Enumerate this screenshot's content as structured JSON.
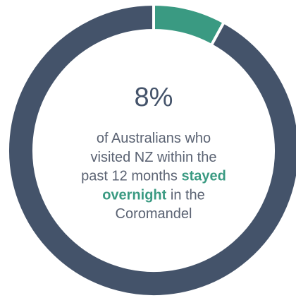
{
  "chart_data": {
    "type": "donut",
    "categories": [
      null,
      null
    ],
    "values": [
      8,
      92
    ],
    "value_labels": [
      "8%",
      null
    ],
    "colors": [
      "#3a9a82",
      "#44536a"
    ],
    "description": [
      [
        {
          "text": "of Australians who",
          "highlight": false
        }
      ],
      [
        {
          "text": "visited NZ within the",
          "highlight": false
        }
      ],
      [
        {
          "text": "past 12 months ",
          "highlight": false
        },
        {
          "text": "stayed",
          "highlight": true
        }
      ],
      [
        {
          "text": "overnight",
          "highlight": true
        },
        {
          "text": " in the",
          "highlight": false
        }
      ],
      [
        {
          "text": "Coromandel",
          "highlight": false
        }
      ]
    ],
    "highlight_color": "#3a9a82"
  }
}
